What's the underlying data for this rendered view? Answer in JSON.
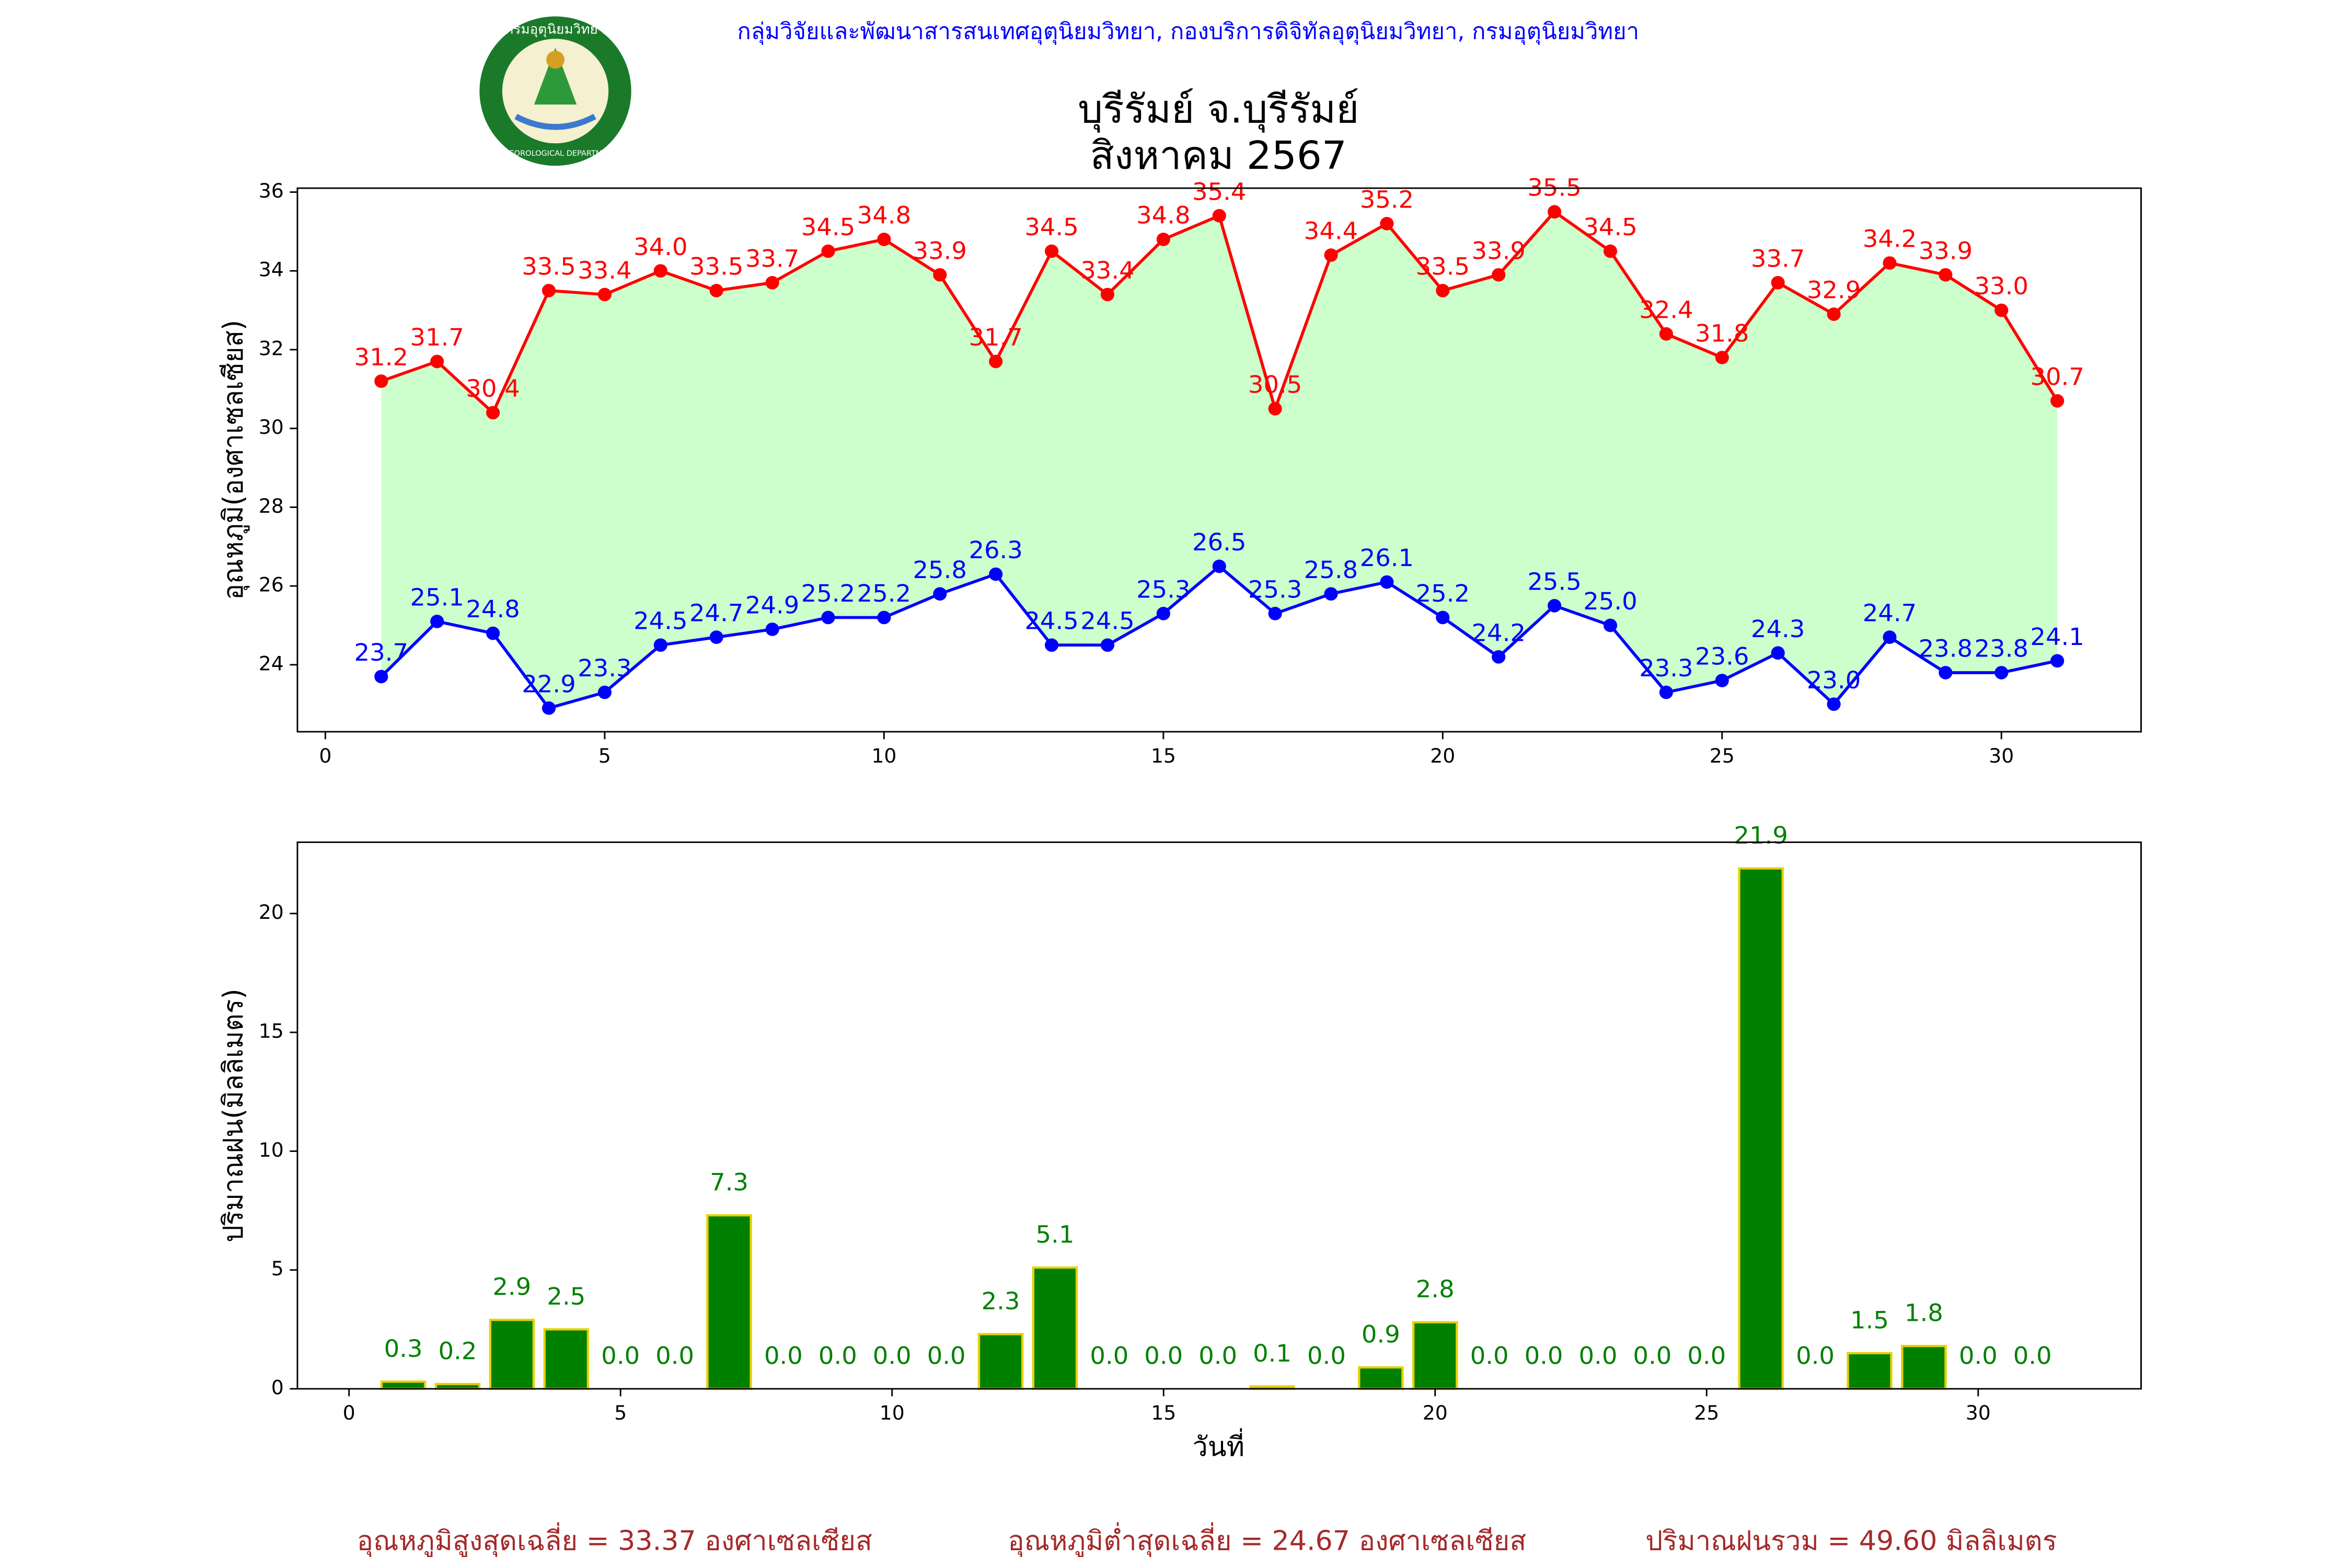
{
  "header": {
    "text": "กลุ่มวิจัยและพัฒนาสารสนเทศอุตุนิยมวิทยา, กองบริการดิจิทัลอุตุนิยมวิทยา, กรมอุตุนิยมวิทยา"
  },
  "logo": {
    "top_text": "กรมอุตุนิยมวิทยา",
    "bottom_text": "METEOROLOGICAL DEPARTMENT"
  },
  "chart_data": [
    {
      "type": "line",
      "title": "บุรีรัมย์ จ.บุรีรัมย์",
      "subtitle": "สิงหาคม 2567",
      "y_label": "อุณหภูมิ(องศาเซลเซียส)",
      "x": [
        1,
        2,
        3,
        4,
        5,
        6,
        7,
        8,
        9,
        10,
        11,
        12,
        13,
        14,
        15,
        16,
        17,
        18,
        19,
        20,
        21,
        22,
        23,
        24,
        25,
        26,
        27,
        28,
        29,
        30,
        31
      ],
      "series": [
        {
          "name": "max",
          "color": "#ff0000",
          "values": [
            31.2,
            31.7,
            30.4,
            33.5,
            33.4,
            34.0,
            33.5,
            33.7,
            34.5,
            34.8,
            33.9,
            31.7,
            34.5,
            33.4,
            34.8,
            35.4,
            30.5,
            34.4,
            35.2,
            33.5,
            33.9,
            35.5,
            34.5,
            32.4,
            31.8,
            33.7,
            32.9,
            34.2,
            33.9,
            33.0,
            30.7
          ],
          "value_labels": [
            "31.2",
            "31.7",
            "30.4",
            "33.5",
            "33.4",
            "34.0",
            "33.5",
            "33.7",
            "34.5",
            "34.8",
            "33.9",
            "31.7",
            "34.5",
            "33.4",
            "34.8",
            "35.4",
            "30.5",
            "34.4",
            "35.2",
            "33.5",
            "33.9",
            "35.5",
            "34.5",
            "32.4",
            "31.8",
            "33.7",
            "32.9",
            "34.2",
            "33.9",
            "33.0",
            "30.7"
          ]
        },
        {
          "name": "min",
          "color": "#0000ff",
          "values": [
            23.7,
            25.1,
            24.8,
            22.9,
            23.3,
            24.5,
            24.7,
            24.9,
            25.2,
            25.2,
            25.8,
            26.3,
            24.5,
            24.5,
            25.3,
            26.5,
            25.3,
            25.8,
            26.1,
            25.2,
            24.2,
            25.5,
            25.0,
            23.3,
            23.6,
            24.3,
            23.0,
            24.7,
            23.8,
            23.8,
            24.1
          ],
          "value_labels": [
            "23.7",
            "25.1",
            "24.8",
            "22.9",
            "23.3",
            "24.5",
            "24.7",
            "24.9",
            "25.2",
            "25.2",
            "25.8",
            "26.3",
            "24.5",
            "24.5",
            "25.3",
            "26.5",
            "25.3",
            "25.8",
            "26.1",
            "25.2",
            "24.2",
            "25.5",
            "25.0",
            "23.3",
            "23.6",
            "24.3",
            "23.0",
            "24.7",
            "23.8",
            "23.8",
            "24.1"
          ]
        }
      ],
      "fill_between_color": "#ccffcc",
      "xlim": [
        -0.5,
        32.5
      ],
      "xticks": [
        0,
        5,
        10,
        15,
        20,
        25,
        30
      ],
      "ylim": [
        22.3,
        36.1
      ],
      "yticks": [
        24,
        26,
        28,
        30,
        32,
        34,
        36
      ]
    },
    {
      "type": "bar",
      "y_label": "ปริมาณฝน(มิลลิเมตร)",
      "x_label": "วันที่",
      "x": [
        1,
        2,
        3,
        4,
        5,
        6,
        7,
        8,
        9,
        10,
        11,
        12,
        13,
        14,
        15,
        16,
        17,
        18,
        19,
        20,
        21,
        22,
        23,
        24,
        25,
        26,
        27,
        28,
        29,
        30,
        31
      ],
      "values": [
        0.3,
        0.2,
        2.9,
        2.5,
        0,
        0,
        7.3,
        0,
        0,
        0,
        0,
        2.3,
        5.1,
        0,
        0,
        0,
        0.1,
        0,
        0.9,
        2.8,
        0,
        0,
        0,
        0,
        0,
        21.9,
        0,
        1.5,
        1.8,
        0,
        0
      ],
      "value_labels": [
        "0.3",
        "0.2",
        "2.9",
        "2.5",
        "0.0",
        "0.0",
        "7.3",
        "0.0",
        "0.0",
        "0.0",
        "0.0",
        "2.3",
        "5.1",
        "0.0",
        "0.0",
        "0.0",
        "0.1",
        "0.0",
        "0.9",
        "2.8",
        "0.0",
        "0.0",
        "0.0",
        "0.0",
        "0.0",
        "21.9",
        "0.0",
        "1.5",
        "1.8",
        "0.0",
        "0.0"
      ],
      "color": "#008000",
      "edge_color": "#e6d000",
      "label_color": "#008000",
      "xlim": [
        -0.95,
        33
      ],
      "xticks": [
        0,
        5,
        10,
        15,
        20,
        25,
        30
      ],
      "ylim": [
        0,
        23
      ],
      "yticks": [
        0,
        5,
        10,
        15,
        20
      ]
    }
  ],
  "footer": [
    "อุณหภูมิสูงสุดเฉลี่ย = 33.37 องศาเซลเซียส",
    "อุณหภูมิต่ำสุดเฉลี่ย = 24.67 องศาเซลเซียส",
    "ปริมาณฝนรวม = 49.60 มิลลิเมตร"
  ]
}
